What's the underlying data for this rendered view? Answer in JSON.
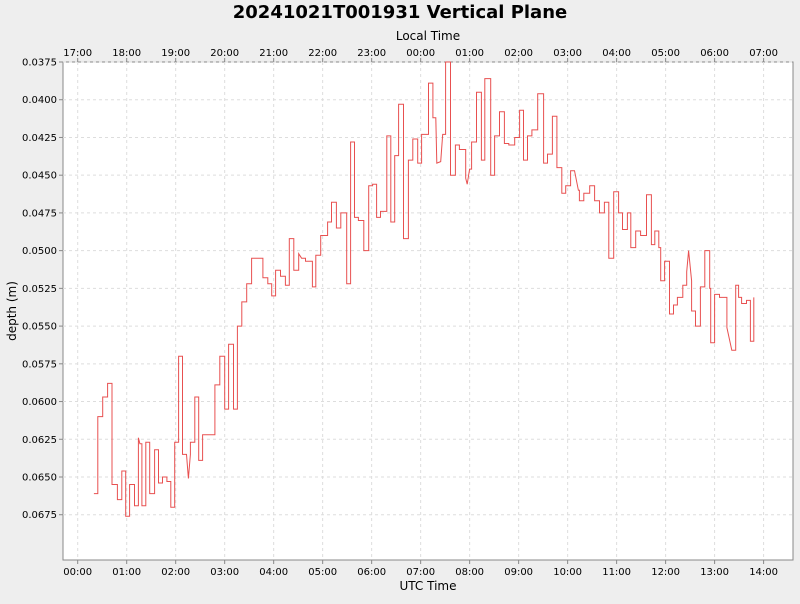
{
  "chart_data": {
    "type": "line",
    "title": "20241021T001931 Vertical Plane",
    "top_axis_label": "Local Time",
    "xlabel": "UTC Time",
    "ylabel": "depth (m)",
    "y_inverted": true,
    "ylim": [
      0.0375,
      0.0705
    ],
    "xlim_utc_hours": [
      -0.3,
      14.6
    ],
    "x_ticks_utc": [
      "00:00",
      "01:00",
      "02:00",
      "03:00",
      "04:00",
      "05:00",
      "06:00",
      "07:00",
      "08:00",
      "09:00",
      "10:00",
      "11:00",
      "12:00",
      "13:00",
      "14:00"
    ],
    "x_ticks_local": [
      "17:00",
      "18:00",
      "19:00",
      "20:00",
      "21:00",
      "22:00",
      "23:00",
      "00:00",
      "01:00",
      "02:00",
      "03:00",
      "04:00",
      "05:00",
      "06:00",
      "07:00"
    ],
    "y_ticks": [
      "0.0375",
      "0.0400",
      "0.0425",
      "0.0450",
      "0.0475",
      "0.0500",
      "0.0525",
      "0.0550",
      "0.0575",
      "0.0600",
      "0.0625",
      "0.0650",
      "0.0675"
    ],
    "grid": true,
    "legend": "none",
    "series": [
      {
        "color": "#e85050",
        "points": [
          [
            0.33,
            0.0661
          ],
          [
            0.41,
            0.0661
          ],
          [
            0.41,
            0.061
          ],
          [
            0.51,
            0.061
          ],
          [
            0.51,
            0.0597
          ],
          [
            0.61,
            0.0597
          ],
          [
            0.61,
            0.0588
          ],
          [
            0.7,
            0.0588
          ],
          [
            0.7,
            0.0655
          ],
          [
            0.81,
            0.0655
          ],
          [
            0.81,
            0.0665
          ],
          [
            0.9,
            0.0665
          ],
          [
            0.9,
            0.0646
          ],
          [
            0.98,
            0.0646
          ],
          [
            0.98,
            0.0676
          ],
          [
            1.06,
            0.0676
          ],
          [
            1.06,
            0.0655
          ],
          [
            1.16,
            0.0655
          ],
          [
            1.16,
            0.0669
          ],
          [
            1.24,
            0.0669
          ],
          [
            1.24,
            0.0624
          ],
          [
            1.27,
            0.0628
          ],
          [
            1.31,
            0.0628
          ],
          [
            1.31,
            0.0669
          ],
          [
            1.39,
            0.0669
          ],
          [
            1.39,
            0.0627
          ],
          [
            1.47,
            0.0627
          ],
          [
            1.47,
            0.0661
          ],
          [
            1.57,
            0.0661
          ],
          [
            1.57,
            0.0632
          ],
          [
            1.65,
            0.0632
          ],
          [
            1.65,
            0.0654
          ],
          [
            1.73,
            0.0654
          ],
          [
            1.73,
            0.065
          ],
          [
            1.82,
            0.065
          ],
          [
            1.82,
            0.0653
          ],
          [
            1.9,
            0.0653
          ],
          [
            1.9,
            0.067
          ],
          [
            1.98,
            0.067
          ],
          [
            1.98,
            0.0627
          ],
          [
            2.06,
            0.0627
          ],
          [
            2.06,
            0.057
          ],
          [
            2.14,
            0.057
          ],
          [
            2.14,
            0.0635
          ],
          [
            2.22,
            0.0635
          ],
          [
            2.26,
            0.0651
          ],
          [
            2.3,
            0.0635
          ],
          [
            2.3,
            0.0627
          ],
          [
            2.39,
            0.0627
          ],
          [
            2.39,
            0.0597
          ],
          [
            2.47,
            0.0597
          ],
          [
            2.47,
            0.0639
          ],
          [
            2.55,
            0.0639
          ],
          [
            2.55,
            0.0622
          ],
          [
            2.71,
            0.0622
          ],
          [
            2.71,
            0.0622
          ],
          [
            2.8,
            0.0622
          ],
          [
            2.8,
            0.0589
          ],
          [
            2.9,
            0.0589
          ],
          [
            2.9,
            0.057
          ],
          [
            3.0,
            0.057
          ],
          [
            3.0,
            0.0605
          ],
          [
            3.08,
            0.0605
          ],
          [
            3.08,
            0.0562
          ],
          [
            3.18,
            0.0562
          ],
          [
            3.18,
            0.0605
          ],
          [
            3.26,
            0.0605
          ],
          [
            3.26,
            0.055
          ],
          [
            3.35,
            0.055
          ],
          [
            3.35,
            0.0534
          ],
          [
            3.45,
            0.0534
          ],
          [
            3.45,
            0.0522
          ],
          [
            3.55,
            0.0522
          ],
          [
            3.55,
            0.0505
          ],
          [
            3.78,
            0.0505
          ],
          [
            3.78,
            0.0518
          ],
          [
            3.88,
            0.0518
          ],
          [
            3.88,
            0.0522
          ],
          [
            3.96,
            0.0522
          ],
          [
            3.96,
            0.053
          ],
          [
            4.04,
            0.053
          ],
          [
            4.04,
            0.0513
          ],
          [
            4.14,
            0.0513
          ],
          [
            4.14,
            0.0517
          ],
          [
            4.24,
            0.0517
          ],
          [
            4.24,
            0.0523
          ],
          [
            4.32,
            0.0523
          ],
          [
            4.32,
            0.0492
          ],
          [
            4.41,
            0.0492
          ],
          [
            4.41,
            0.0513
          ],
          [
            4.51,
            0.0513
          ],
          [
            4.51,
            0.0502
          ],
          [
            4.57,
            0.0505
          ],
          [
            4.65,
            0.0505
          ],
          [
            4.65,
            0.0507
          ],
          [
            4.79,
            0.0507
          ],
          [
            4.79,
            0.0524
          ],
          [
            4.86,
            0.0524
          ],
          [
            4.86,
            0.0503
          ],
          [
            4.96,
            0.0503
          ],
          [
            4.96,
            0.049
          ],
          [
            5.1,
            0.049
          ],
          [
            5.1,
            0.0481
          ],
          [
            5.18,
            0.0481
          ],
          [
            5.18,
            0.0468
          ],
          [
            5.28,
            0.0468
          ],
          [
            5.28,
            0.0485
          ],
          [
            5.37,
            0.0485
          ],
          [
            5.37,
            0.0475
          ],
          [
            5.49,
            0.0475
          ],
          [
            5.49,
            0.0522
          ],
          [
            5.57,
            0.0522
          ],
          [
            5.57,
            0.0428
          ],
          [
            5.65,
            0.0428
          ],
          [
            5.65,
            0.0478
          ],
          [
            5.73,
            0.0478
          ],
          [
            5.73,
            0.048
          ],
          [
            5.84,
            0.048
          ],
          [
            5.84,
            0.05
          ],
          [
            5.94,
            0.05
          ],
          [
            5.94,
            0.0457
          ],
          [
            6.02,
            0.0457
          ],
          [
            6.02,
            0.0456
          ],
          [
            6.1,
            0.0456
          ],
          [
            6.1,
            0.0478
          ],
          [
            6.18,
            0.0478
          ],
          [
            6.18,
            0.0474
          ],
          [
            6.31,
            0.0474
          ],
          [
            6.31,
            0.0424
          ],
          [
            6.39,
            0.0424
          ],
          [
            6.39,
            0.0481
          ],
          [
            6.47,
            0.0481
          ],
          [
            6.47,
            0.0437
          ],
          [
            6.55,
            0.0437
          ],
          [
            6.55,
            0.0403
          ],
          [
            6.65,
            0.0403
          ],
          [
            6.65,
            0.0492
          ],
          [
            6.75,
            0.0492
          ],
          [
            6.75,
            0.044
          ],
          [
            6.84,
            0.044
          ],
          [
            6.84,
            0.0426
          ],
          [
            6.94,
            0.0426
          ],
          [
            6.94,
            0.0442
          ],
          [
            7.02,
            0.0442
          ],
          [
            7.02,
            0.0423
          ],
          [
            7.16,
            0.0423
          ],
          [
            7.16,
            0.0389
          ],
          [
            7.25,
            0.0389
          ],
          [
            7.25,
            0.0412
          ],
          [
            7.31,
            0.0412
          ],
          [
            7.33,
            0.0442
          ],
          [
            7.41,
            0.0441
          ],
          [
            7.45,
            0.0423
          ],
          [
            7.51,
            0.0423
          ],
          [
            7.51,
            0.0375
          ],
          [
            7.61,
            0.0375
          ],
          [
            7.61,
            0.045
          ],
          [
            7.71,
            0.045
          ],
          [
            7.71,
            0.043
          ],
          [
            7.79,
            0.043
          ],
          [
            7.79,
            0.0433
          ],
          [
            7.92,
            0.0433
          ],
          [
            7.92,
            0.0452
          ],
          [
            7.95,
            0.0456
          ],
          [
            8.0,
            0.0446
          ],
          [
            8.04,
            0.0446
          ],
          [
            8.04,
            0.0428
          ],
          [
            8.14,
            0.0428
          ],
          [
            8.14,
            0.0395
          ],
          [
            8.24,
            0.0395
          ],
          [
            8.24,
            0.044
          ],
          [
            8.31,
            0.044
          ],
          [
            8.31,
            0.0386
          ],
          [
            8.43,
            0.0386
          ],
          [
            8.43,
            0.045
          ],
          [
            8.51,
            0.045
          ],
          [
            8.51,
            0.0424
          ],
          [
            8.61,
            0.0424
          ],
          [
            8.61,
            0.0408
          ],
          [
            8.71,
            0.0408
          ],
          [
            8.71,
            0.0429
          ],
          [
            8.8,
            0.0429
          ],
          [
            8.8,
            0.043
          ],
          [
            8.92,
            0.043
          ],
          [
            8.92,
            0.0425
          ],
          [
            9.02,
            0.0425
          ],
          [
            9.02,
            0.0407
          ],
          [
            9.1,
            0.0407
          ],
          [
            9.1,
            0.044
          ],
          [
            9.18,
            0.044
          ],
          [
            9.18,
            0.0424
          ],
          [
            9.27,
            0.0424
          ],
          [
            9.27,
            0.042
          ],
          [
            9.39,
            0.042
          ],
          [
            9.39,
            0.0396
          ],
          [
            9.51,
            0.0396
          ],
          [
            9.51,
            0.0442
          ],
          [
            9.59,
            0.0442
          ],
          [
            9.59,
            0.0436
          ],
          [
            9.69,
            0.0436
          ],
          [
            9.69,
            0.0411
          ],
          [
            9.78,
            0.0411
          ],
          [
            9.78,
            0.0445
          ],
          [
            9.88,
            0.0445
          ],
          [
            9.88,
            0.0462
          ],
          [
            9.96,
            0.0462
          ],
          [
            9.96,
            0.0457
          ],
          [
            10.06,
            0.0457
          ],
          [
            10.06,
            0.0447
          ],
          [
            10.14,
            0.0447
          ],
          [
            10.22,
            0.046
          ],
          [
            10.24,
            0.046
          ],
          [
            10.24,
            0.0467
          ],
          [
            10.33,
            0.0467
          ],
          [
            10.33,
            0.0462
          ],
          [
            10.45,
            0.0462
          ],
          [
            10.45,
            0.0457
          ],
          [
            10.55,
            0.0457
          ],
          [
            10.55,
            0.0467
          ],
          [
            10.65,
            0.0467
          ],
          [
            10.65,
            0.0475
          ],
          [
            10.75,
            0.0475
          ],
          [
            10.75,
            0.0468
          ],
          [
            10.84,
            0.0468
          ],
          [
            10.84,
            0.0505
          ],
          [
            10.94,
            0.0505
          ],
          [
            10.94,
            0.0461
          ],
          [
            11.04,
            0.0461
          ],
          [
            11.04,
            0.0475
          ],
          [
            11.12,
            0.0475
          ],
          [
            11.12,
            0.0486
          ],
          [
            11.22,
            0.0486
          ],
          [
            11.22,
            0.0475
          ],
          [
            11.29,
            0.0475
          ],
          [
            11.29,
            0.0498
          ],
          [
            11.39,
            0.0498
          ],
          [
            11.39,
            0.0487
          ],
          [
            11.49,
            0.0487
          ],
          [
            11.49,
            0.049
          ],
          [
            11.61,
            0.049
          ],
          [
            11.61,
            0.0463
          ],
          [
            11.71,
            0.0463
          ],
          [
            11.71,
            0.0496
          ],
          [
            11.78,
            0.0496
          ],
          [
            11.78,
            0.0487
          ],
          [
            11.86,
            0.0487
          ],
          [
            11.86,
            0.0498
          ],
          [
            11.9,
            0.0498
          ],
          [
            11.9,
            0.052
          ],
          [
            11.98,
            0.052
          ],
          [
            11.98,
            0.0507
          ],
          [
            12.08,
            0.0507
          ],
          [
            12.08,
            0.0542
          ],
          [
            12.16,
            0.0542
          ],
          [
            12.16,
            0.0536
          ],
          [
            12.24,
            0.0536
          ],
          [
            12.24,
            0.0531
          ],
          [
            12.35,
            0.0531
          ],
          [
            12.35,
            0.0523
          ],
          [
            12.43,
            0.0523
          ],
          [
            12.43,
            0.0514
          ],
          [
            12.47,
            0.05
          ],
          [
            12.53,
            0.052
          ],
          [
            12.53,
            0.054
          ],
          [
            12.61,
            0.054
          ],
          [
            12.61,
            0.055
          ],
          [
            12.71,
            0.055
          ],
          [
            12.71,
            0.0524
          ],
          [
            12.8,
            0.0524
          ],
          [
            12.8,
            0.05
          ],
          [
            12.9,
            0.05
          ],
          [
            12.9,
            0.0525
          ],
          [
            12.92,
            0.0525
          ],
          [
            12.92,
            0.0561
          ],
          [
            13.0,
            0.0561
          ],
          [
            13.0,
            0.0529
          ],
          [
            13.1,
            0.0529
          ],
          [
            13.1,
            0.0531
          ],
          [
            13.16,
            0.0531
          ],
          [
            13.16,
            0.0531
          ],
          [
            13.25,
            0.0531
          ],
          [
            13.25,
            0.0551
          ],
          [
            13.35,
            0.0566
          ],
          [
            13.43,
            0.0566
          ],
          [
            13.43,
            0.0523
          ],
          [
            13.49,
            0.0523
          ],
          [
            13.49,
            0.0531
          ],
          [
            13.55,
            0.0531
          ],
          [
            13.55,
            0.0535
          ],
          [
            13.65,
            0.0535
          ],
          [
            13.65,
            0.0533
          ],
          [
            13.73,
            0.0533
          ],
          [
            13.73,
            0.056
          ],
          [
            13.8,
            0.056
          ],
          [
            13.8,
            0.0531
          ]
        ]
      }
    ]
  }
}
